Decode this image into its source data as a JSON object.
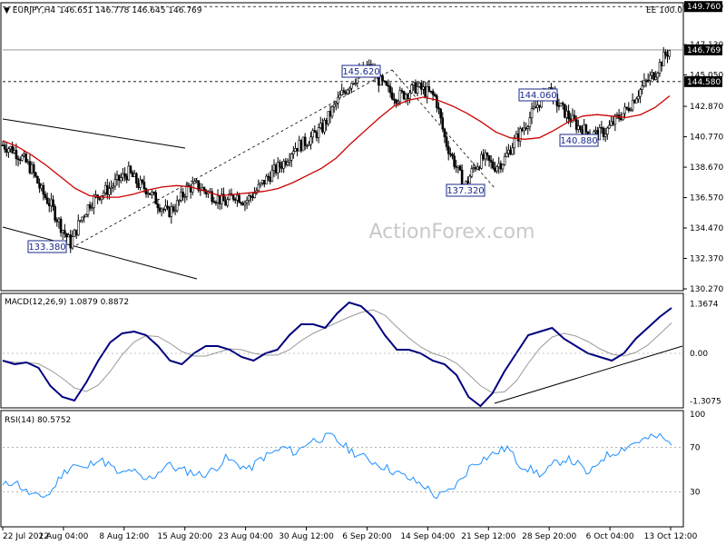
{
  "header": {
    "symbol": "EURJPY,H4",
    "ohlc": "146.651 146.778 146.645 146.769",
    "ea": "EE 100.0"
  },
  "watermark": "ActionForex.com",
  "chart_data": [
    {
      "type": "candlestick",
      "title": "EURJPY,H4 146.651 146.778 146.645 146.769",
      "ylim": [
        130.27,
        149.9
      ],
      "y_ticks": [
        "149.760",
        "147.130",
        "145.050",
        "142.870",
        "140.770",
        "138.670",
        "136.570",
        "134.470",
        "132.370",
        "130.270"
      ],
      "price_tags": [
        {
          "value": 149.76,
          "text": "149.760",
          "style": "dark"
        },
        {
          "value": 146.769,
          "text": "146.769",
          "style": "dark"
        },
        {
          "value": 144.58,
          "text": "144.580",
          "style": "dark"
        }
      ],
      "horizontal_lines": [
        {
          "value": 146.769,
          "style": "solid-thin"
        },
        {
          "value": 144.58,
          "style": "dashed"
        },
        {
          "value": 149.76,
          "style": "dashed-top"
        }
      ],
      "annotations": [
        "133.380",
        "145.620",
        "137.320",
        "144.060",
        "140.880"
      ],
      "close_path": [
        [
          0,
          140.2
        ],
        [
          6,
          139.9
        ],
        [
          12,
          139.3
        ],
        [
          18,
          138.5
        ],
        [
          24,
          137.0
        ],
        [
          30,
          136.0
        ],
        [
          36,
          134.6
        ],
        [
          42,
          133.4
        ],
        [
          48,
          135.0
        ],
        [
          54,
          136.2
        ],
        [
          60,
          136.8
        ],
        [
          66,
          137.2
        ],
        [
          72,
          137.8
        ],
        [
          78,
          138.3
        ],
        [
          84,
          137.5
        ],
        [
          90,
          137.1
        ],
        [
          96,
          136.2
        ],
        [
          102,
          135.5
        ],
        [
          108,
          136.1
        ],
        [
          114,
          137.2
        ],
        [
          120,
          137.4
        ],
        [
          126,
          137.0
        ],
        [
          132,
          136.6
        ],
        [
          138,
          136.2
        ],
        [
          144,
          136.8
        ],
        [
          150,
          136.3
        ],
        [
          156,
          136.9
        ],
        [
          162,
          137.7
        ],
        [
          168,
          138.4
        ],
        [
          174,
          139.0
        ],
        [
          180,
          140.0
        ],
        [
          186,
          140.3
        ],
        [
          192,
          140.8
        ],
        [
          198,
          141.4
        ],
        [
          204,
          142.6
        ],
        [
          210,
          143.7
        ],
        [
          216,
          144.6
        ],
        [
          222,
          145.2
        ],
        [
          226,
          145.6
        ],
        [
          232,
          144.8
        ],
        [
          238,
          144.0
        ],
        [
          244,
          143.5
        ],
        [
          250,
          143.8
        ],
        [
          256,
          144.2
        ],
        [
          262,
          143.9
        ],
        [
          268,
          143.5
        ],
        [
          274,
          140.5
        ],
        [
          280,
          138.9
        ],
        [
          286,
          137.3
        ],
        [
          292,
          138.7
        ],
        [
          298,
          139.3
        ],
        [
          304,
          138.7
        ],
        [
          310,
          139.1
        ],
        [
          316,
          140.3
        ],
        [
          322,
          141.3
        ],
        [
          328,
          142.4
        ],
        [
          334,
          143.5
        ],
        [
          338,
          144.06
        ],
        [
          344,
          143.0
        ],
        [
          350,
          142.2
        ],
        [
          356,
          141.5
        ],
        [
          362,
          141.1
        ],
        [
          368,
          140.9
        ],
        [
          374,
          141.2
        ],
        [
          380,
          142.0
        ],
        [
          386,
          142.6
        ],
        [
          392,
          143.6
        ],
        [
          398,
          144.5
        ],
        [
          404,
          145.2
        ],
        [
          410,
          146.4
        ],
        [
          413,
          146.77
        ]
      ],
      "moving_average": {
        "color": "#cc0000",
        "values": [
          140.5,
          140.1,
          139.5,
          138.8,
          138.0,
          137.2,
          136.7,
          136.6,
          136.6,
          136.8,
          137.1,
          137.3,
          137.4,
          137.3,
          137.0,
          136.7,
          136.8,
          136.9,
          137.0,
          137.2,
          137.6,
          138.1,
          138.6,
          139.3,
          140.3,
          141.2,
          142.1,
          142.9,
          143.3,
          143.5,
          143.3,
          142.9,
          142.4,
          141.8,
          141.1,
          140.7,
          140.6,
          140.7,
          141.2,
          141.8,
          142.2,
          142.3,
          142.2,
          142.1,
          142.3,
          142.8,
          143.6
        ]
      }
    },
    {
      "type": "line",
      "title": "MACD(12,26,9) 1.0879 0.8872",
      "y_ticks": [
        "1.3674",
        "0.00",
        "-1.3075"
      ],
      "ylim": [
        -1.45,
        1.55
      ],
      "series": [
        {
          "name": "MACD",
          "color": "#000080",
          "values": [
            -0.2,
            -0.3,
            -0.25,
            -0.4,
            -0.9,
            -1.2,
            -1.3,
            -0.8,
            -0.2,
            0.3,
            0.55,
            0.6,
            0.5,
            0.2,
            -0.2,
            -0.3,
            0.0,
            0.2,
            0.2,
            0.1,
            -0.1,
            -0.2,
            0.0,
            0.1,
            0.5,
            0.8,
            0.8,
            0.7,
            1.1,
            1.4,
            1.3,
            1.0,
            0.5,
            0.1,
            0.1,
            0.0,
            -0.2,
            -0.3,
            -0.6,
            -1.2,
            -1.45,
            -1.1,
            -0.5,
            0.0,
            0.5,
            0.6,
            0.7,
            0.4,
            0.2,
            0.0,
            -0.1,
            -0.2,
            0.0,
            0.4,
            0.7,
            1.0,
            1.25
          ]
        }
      ],
      "trendline": "rising support"
    },
    {
      "type": "line",
      "title": "RSI(14) 80.5752",
      "y_ticks": [
        "100",
        "70",
        "30"
      ],
      "ylim": [
        0,
        100
      ],
      "series": [
        {
          "name": "RSI",
          "color": "#1e90ff",
          "values": [
            35,
            40,
            30,
            25,
            28,
            45,
            55,
            50,
            60,
            55,
            45,
            50,
            40,
            45,
            55,
            50,
            48,
            45,
            50,
            60,
            55,
            50,
            60,
            65,
            70,
            65,
            75,
            78,
            80,
            72,
            65,
            60,
            55,
            50,
            45,
            40,
            35,
            25,
            30,
            40,
            55,
            60,
            65,
            70,
            55,
            50,
            45,
            55,
            60,
            55,
            45,
            60,
            65,
            70,
            75,
            78,
            80,
            72
          ]
        }
      ],
      "y_refs": [
        70,
        30
      ]
    }
  ],
  "x_axis": {
    "labels": [
      "22 Jul 2022",
      "1 Aug 04:00",
      "8 Aug 12:00",
      "15 Aug 20:00",
      "23 Aug 04:00",
      "30 Aug 12:00",
      "6 Sep 20:00",
      "14 Sep 04:00",
      "21 Sep 12:00",
      "28 Sep 20:00",
      "6 Oct 04:00",
      "13 Oct 12:00"
    ]
  }
}
